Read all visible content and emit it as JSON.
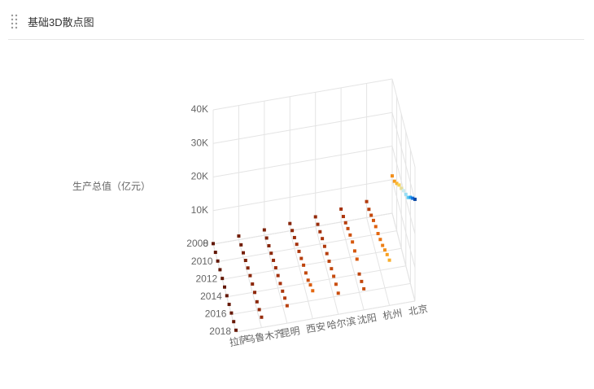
{
  "header": {
    "title": "基础3D散点图"
  },
  "chart_data": {
    "type": "scatter3d",
    "z_label": "生产总值（亿元）",
    "categories": [
      "拉萨",
      "乌鲁木齐",
      "昆明",
      "西安",
      "哈尔滨",
      "沈阳",
      "杭州",
      "北京"
    ],
    "years": [
      2008,
      2009,
      2010,
      2011,
      2012,
      2013,
      2014,
      2015,
      2016,
      2017,
      2018
    ],
    "values": [
      [
        154,
        180,
        199,
        239,
        260,
        307,
        348,
        377,
        425,
        478,
        540
      ],
      [
        1100,
        1095,
        1339,
        1690,
        2060,
        2400,
        2510,
        2631,
        2459,
        2744,
        3100
      ],
      [
        1605,
        1809,
        2120,
        2509,
        3011,
        3415,
        3713,
        3968,
        4300,
        4857,
        5206
      ],
      [
        2190,
        2724,
        3241,
        3862,
        4366,
        4884,
        5493,
        5801,
        6257,
        7469,
        8350
      ],
      [
        2869,
        3258,
        3665,
        4243,
        4550,
        5010,
        5340,
        5751,
        6101,
        6355,
        6300
      ],
      [
        3860,
        4268,
        5017,
        5915,
        6606,
        7159,
        7098,
        7280,
        5460,
        5865,
        6292
      ],
      [
        4781,
        5098,
        5949,
        7019,
        7803,
        8344,
        9206,
        10050,
        11313,
        12556,
        13509
      ],
      [
        11115,
        12153,
        14114,
        16252,
        17879,
        19800,
        21331,
        23014,
        25669,
        28015,
        30320
      ]
    ],
    "ylim": [
      2008,
      2018
    ],
    "yticks": [
      2008,
      2010,
      2012,
      2014,
      2016,
      2018
    ],
    "zlim": [
      0,
      40000
    ],
    "zticks": [
      0,
      {
        "value": 10000,
        "label": "10K"
      },
      {
        "value": 20000,
        "label": "20K"
      },
      {
        "value": 30000,
        "label": "30K"
      },
      {
        "value": 40000,
        "label": "40K"
      }
    ],
    "color_range": [
      0,
      32000
    ],
    "colors": [
      "#5e1606",
      "#a8320c",
      "#e2620f",
      "#f79a1c",
      "#fbcf45",
      "#c9ecf6",
      "#35bff0",
      "#0f6fe0",
      "#0a2d7a"
    ],
    "grid": true
  }
}
